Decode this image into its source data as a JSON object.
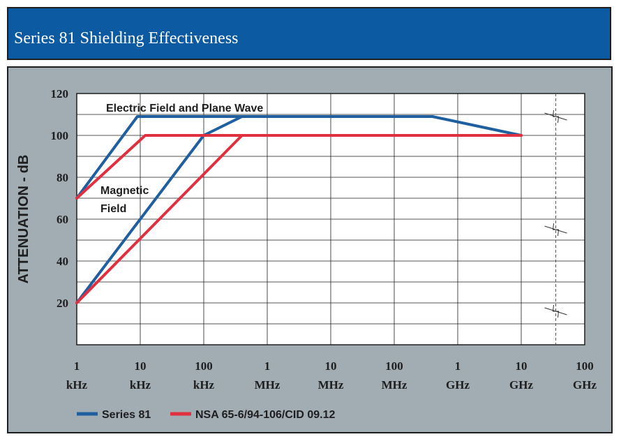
{
  "header": {
    "title": "Series 81 Shielding Effectiveness"
  },
  "colors": {
    "header_bg": "#0b5aa2",
    "panel_bg": "#a1acb3",
    "series81": "#1f5f9f",
    "nsa": "#e03040"
  },
  "chart_data": {
    "type": "line",
    "ylabel": "ATTENUATION - dB",
    "xlabel": "",
    "x_scale": "log",
    "ylim": [
      0,
      120
    ],
    "yticks": [
      "20",
      "40",
      "60",
      "80",
      "100",
      "120"
    ],
    "xticks": [
      {
        "num": "1",
        "unit": "kHz"
      },
      {
        "num": "10",
        "unit": "kHz"
      },
      {
        "num": "100",
        "unit": "kHz"
      },
      {
        "num": "1",
        "unit": "MHz"
      },
      {
        "num": "10",
        "unit": "MHz"
      },
      {
        "num": "100",
        "unit": "MHz"
      },
      {
        "num": "1",
        "unit": "GHz"
      },
      {
        "num": "10",
        "unit": "GHz"
      },
      {
        "num": "100",
        "unit": "GHz"
      }
    ],
    "grid": true,
    "legend_position": "bottom-left",
    "series": [
      {
        "name": "Series 81",
        "color": "#1f5f9f",
        "group": "Electric Field and Plane Wave",
        "x_hz": [
          1000,
          9000,
          400000000,
          10000000000
        ],
        "y": [
          70,
          109,
          109,
          100
        ]
      },
      {
        "name": "Series 81",
        "color": "#1f5f9f",
        "group": "Magnetic Field",
        "x_hz": [
          1000,
          100000,
          400000,
          400000000
        ],
        "y": [
          20,
          100,
          109,
          109
        ]
      },
      {
        "name": "NSA 65-6/94-106/CID 09.12",
        "color": "#e03040",
        "group": "Electric Field and Plane Wave",
        "x_hz": [
          1000,
          12000,
          10000000000
        ],
        "y": [
          70,
          100,
          100
        ]
      },
      {
        "name": "NSA 65-6/94-106/CID 09.12",
        "color": "#e03040",
        "group": "Magnetic Field",
        "x_hz": [
          1000,
          400000,
          10000000000
        ],
        "y": [
          20,
          100,
          100
        ]
      }
    ],
    "annotations": {
      "electric": "Electric Field and Plane Wave",
      "magnetic_line1": "Magnetic",
      "magnetic_line2": "Field"
    },
    "legend": [
      {
        "label": "Series 81",
        "color": "#1f5f9f"
      },
      {
        "label": "NSA 65-6/94-106/CID 09.12",
        "color": "#e03040"
      }
    ],
    "break_marker_x_hz": 35000000000,
    "break_marker_y": [
      109,
      55,
      16
    ]
  }
}
